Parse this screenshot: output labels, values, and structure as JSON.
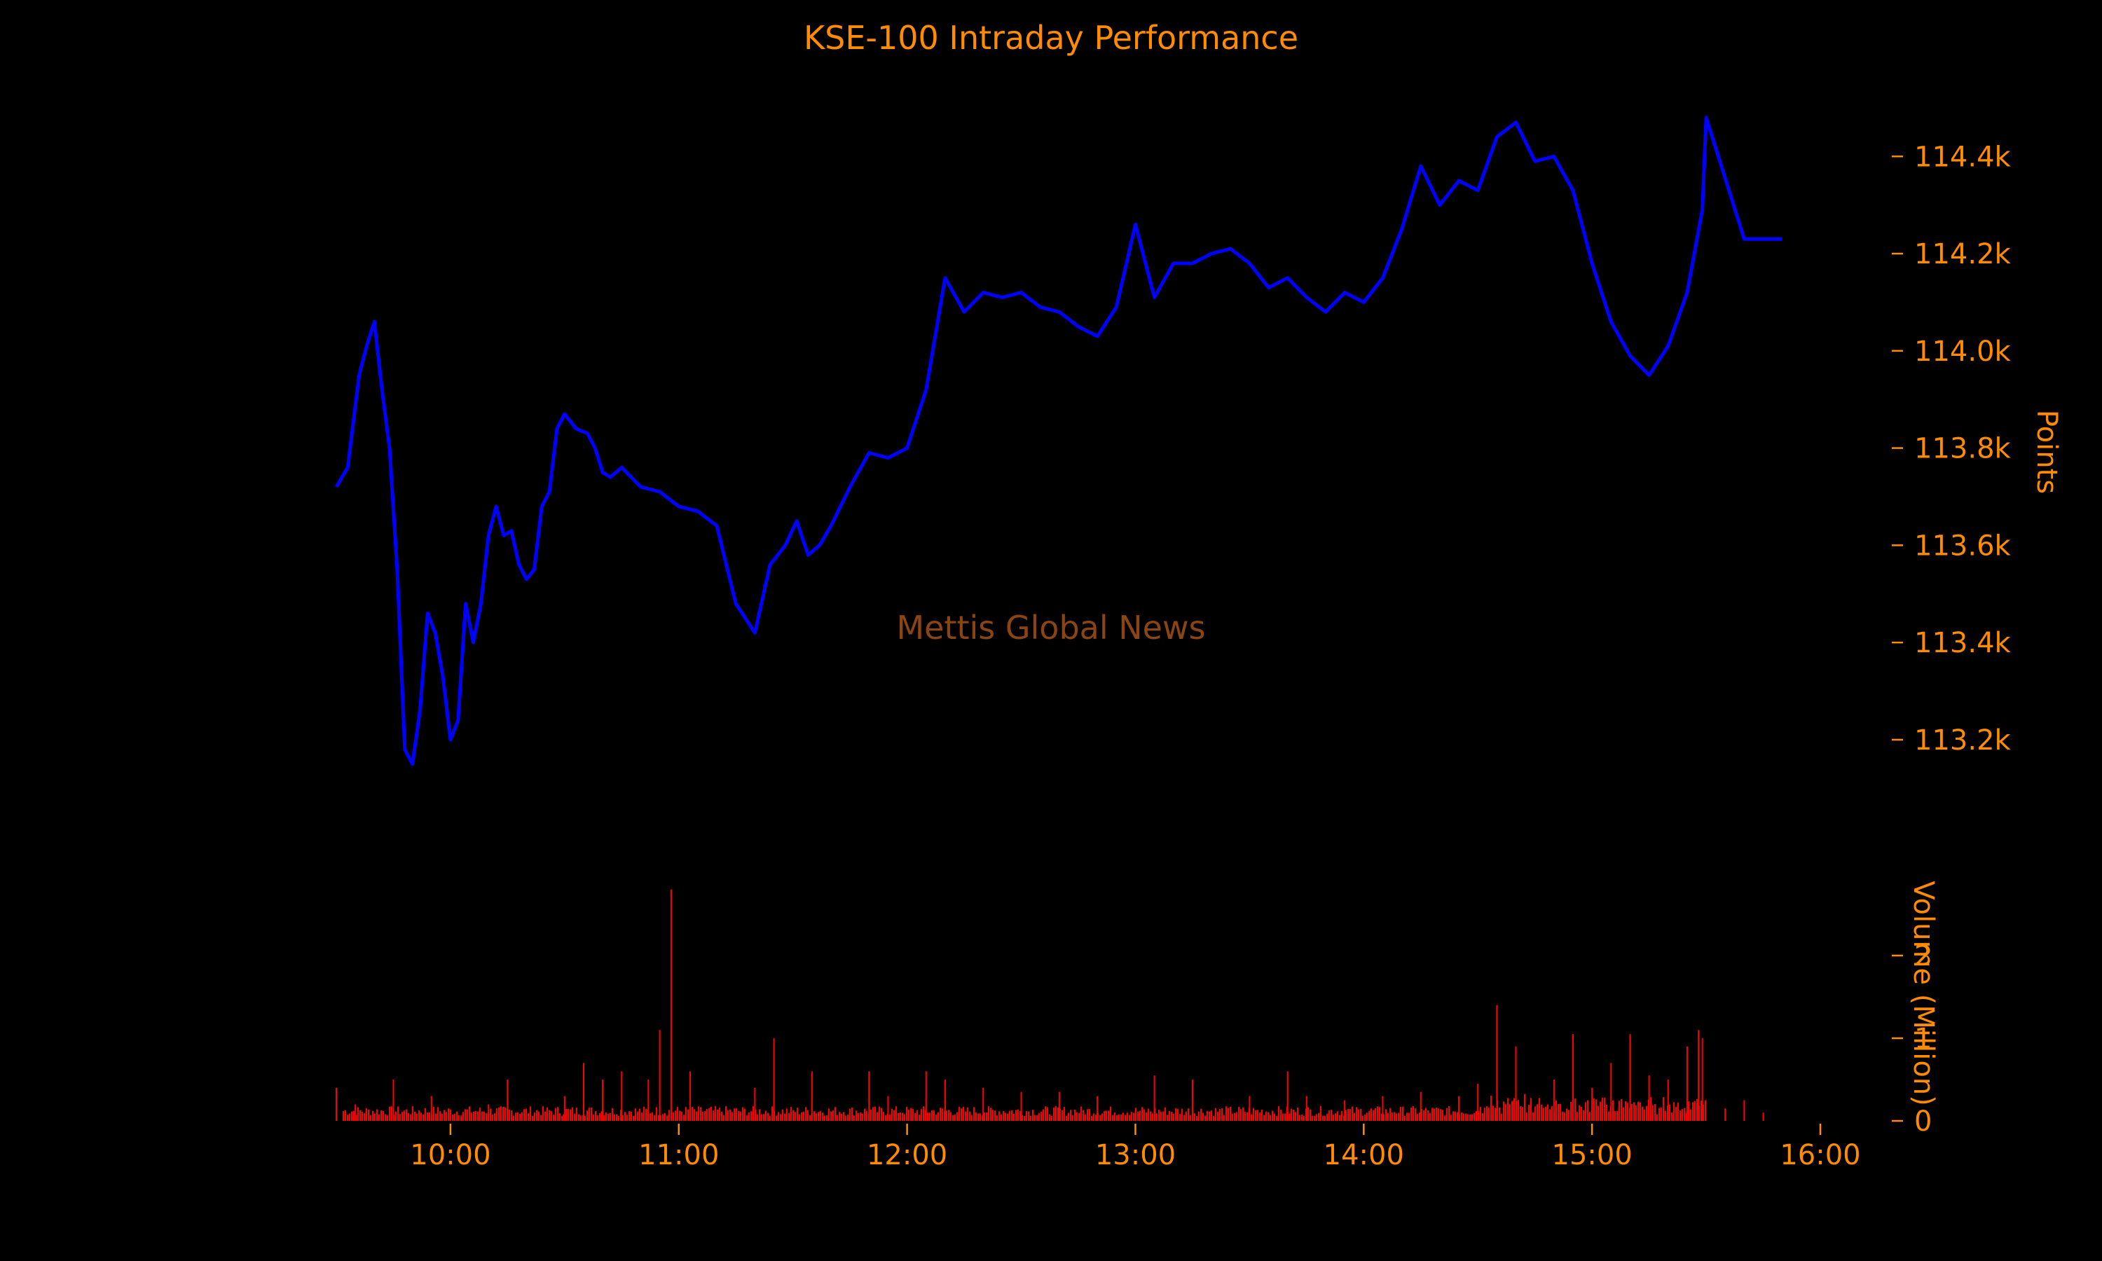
{
  "chart_data": {
    "type": "line",
    "title": "KSE-100 Intraday Performance",
    "watermark": "Mettis Global News",
    "colors": {
      "background": "#000000",
      "text": "#FF8C00",
      "price_line": "#0000FF",
      "volume_bars": "#FF0000",
      "watermark": "#8B4513"
    },
    "x_axis": {
      "type": "time",
      "range": [
        "09:30",
        "16:00"
      ],
      "tick_labels": [
        "10:00",
        "11:00",
        "12:00",
        "13:00",
        "14:00",
        "15:00",
        "16:00"
      ]
    },
    "price_panel": {
      "ylabel": "Points",
      "ylim": [
        113050,
        114520
      ],
      "tick_values": [
        113200,
        113400,
        113600,
        113800,
        114000,
        114200,
        114400
      ],
      "tick_labels": [
        "113.2k",
        "113.4k",
        "113.6k",
        "113.8k",
        "114.0k",
        "114.2k",
        "114.4k"
      ],
      "series": [
        {
          "values_note_free": true,
          "x": [
            "09:30",
            "09:33",
            "09:36",
            "09:38",
            "09:40",
            "09:42",
            "09:44",
            "09:46",
            "09:48",
            "09:50",
            "09:52",
            "09:54",
            "09:56",
            "09:58",
            "10:00",
            "10:02",
            "10:04",
            "10:06",
            "10:08",
            "10:10",
            "10:12",
            "10:14",
            "10:16",
            "10:18",
            "10:20",
            "10:22",
            "10:24",
            "10:26",
            "10:28",
            "10:30",
            "10:33",
            "10:36",
            "10:38",
            "10:40",
            "10:42",
            "10:45",
            "10:50",
            "10:55",
            "11:00",
            "11:05",
            "11:10",
            "11:15",
            "11:20",
            "11:24",
            "11:28",
            "11:31",
            "11:34",
            "11:37",
            "11:40",
            "11:45",
            "11:50",
            "11:55",
            "12:00",
            "12:05",
            "12:10",
            "12:15",
            "12:20",
            "12:25",
            "12:30",
            "12:35",
            "12:40",
            "12:45",
            "12:50",
            "12:55",
            "13:00",
            "13:05",
            "13:10",
            "13:15",
            "13:20",
            "13:25",
            "13:30",
            "13:35",
            "13:40",
            "13:45",
            "13:50",
            "13:55",
            "14:00",
            "14:05",
            "14:10",
            "14:15",
            "14:20",
            "14:25",
            "14:30",
            "14:35",
            "14:40",
            "14:45",
            "14:50",
            "14:55",
            "15:00",
            "15:05",
            "15:10",
            "15:15",
            "15:20",
            "15:25",
            "15:29",
            "15:30",
            "15:40",
            "15:50"
          ],
          "y": [
            113720,
            113760,
            113950,
            114010,
            114060,
            113920,
            113800,
            113550,
            113180,
            113150,
            113260,
            113460,
            113420,
            113330,
            113200,
            113240,
            113480,
            113400,
            113480,
            113620,
            113680,
            113620,
            113630,
            113560,
            113530,
            113550,
            113680,
            113710,
            113840,
            113870,
            113840,
            113830,
            113800,
            113750,
            113740,
            113760,
            113720,
            113710,
            113680,
            113670,
            113640,
            113480,
            113420,
            113560,
            113600,
            113650,
            113580,
            113600,
            113640,
            113720,
            113790,
            113780,
            113800,
            113920,
            114150,
            114080,
            114120,
            114110,
            114120,
            114090,
            114080,
            114050,
            114030,
            114090,
            114260,
            114110,
            114180,
            114180,
            114200,
            114210,
            114180,
            114130,
            114150,
            114110,
            114080,
            114120,
            114100,
            114150,
            114250,
            114380,
            114300,
            114350,
            114330,
            114440,
            114470,
            114390,
            114400,
            114330,
            114180,
            114060,
            113990,
            113950,
            114010,
            114120,
            114290,
            114480,
            114230,
            114230
          ]
        }
      ]
    },
    "volume_panel": {
      "ylabel": "Volume (Million)",
      "ylim": [
        0,
        3
      ],
      "tick_values": [
        0,
        1,
        2
      ],
      "tick_labels": [
        "0",
        "1",
        "2"
      ],
      "spikes": {
        "x": [
          "09:30",
          "09:35",
          "09:45",
          "09:55",
          "10:10",
          "10:15",
          "10:30",
          "10:35",
          "10:40",
          "10:45",
          "10:52",
          "10:55",
          "10:58",
          "11:03",
          "11:20",
          "11:25",
          "11:35",
          "11:50",
          "11:55",
          "12:05",
          "12:10",
          "12:20",
          "12:30",
          "12:40",
          "12:50",
          "13:05",
          "13:15",
          "13:30",
          "13:40",
          "13:45",
          "13:55",
          "14:05",
          "14:15",
          "14:25",
          "14:30",
          "14:35",
          "14:40",
          "14:50",
          "14:55",
          "15:00",
          "15:05",
          "15:10",
          "15:15",
          "15:20",
          "15:25",
          "15:28",
          "15:29",
          "15:35",
          "15:40",
          "15:45"
        ],
        "y": [
          0.4,
          0.2,
          0.5,
          0.3,
          0.2,
          0.5,
          0.3,
          0.7,
          0.5,
          0.6,
          0.5,
          1.1,
          2.8,
          0.6,
          0.4,
          1.0,
          0.6,
          0.6,
          0.3,
          0.6,
          0.5,
          0.4,
          0.35,
          0.35,
          0.3,
          0.55,
          0.5,
          0.3,
          0.6,
          0.3,
          0.25,
          0.3,
          0.35,
          0.3,
          0.45,
          1.4,
          0.9,
          0.5,
          1.05,
          0.4,
          0.7,
          1.05,
          0.55,
          0.5,
          0.9,
          1.1,
          1.0,
          0.15,
          0.25,
          0.1
        ]
      }
    }
  }
}
